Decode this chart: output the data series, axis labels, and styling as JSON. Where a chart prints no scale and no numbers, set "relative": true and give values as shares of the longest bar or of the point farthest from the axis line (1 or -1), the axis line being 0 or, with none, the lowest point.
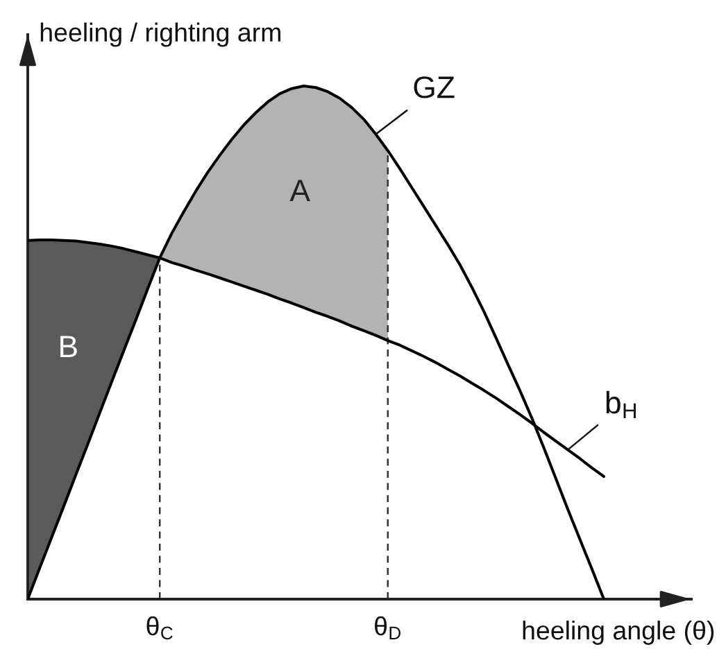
{
  "chart_data": {
    "type": "line",
    "relative": true,
    "tick_labels": "x",
    "xlabel": "heeling angle (θ)",
    "ylabel": "heeling / righting arm",
    "categories": [
      null,
      null,
      null,
      null,
      null,
      null,
      null,
      null,
      null,
      null,
      null,
      "θ$_{C}$",
      null,
      null,
      null,
      null,
      null,
      null,
      null,
      null,
      null,
      null,
      null,
      null,
      null,
      null,
      null,
      null,
      null,
      null,
      "θ$_{D}$",
      null,
      null,
      null,
      null,
      null,
      null,
      null,
      null,
      null,
      null,
      null,
      null,
      null,
      null,
      null,
      null,
      null,
      null
    ],
    "series": [
      {
        "name": "B",
        "type": "area",
        "color": "#5a5a5a",
        "values": [
          0.699,
          0.7,
          0.7,
          0.699,
          0.698,
          0.695,
          0.692,
          0.688,
          0.683,
          0.677,
          0.671,
          0.665,
          null,
          null,
          null,
          null,
          null,
          null,
          null,
          null,
          null,
          null,
          null,
          null,
          null,
          null,
          null,
          null,
          null,
          null,
          null,
          null,
          null,
          null,
          null,
          null,
          null,
          null,
          null,
          null,
          null,
          null,
          null,
          null,
          null,
          null,
          null,
          null,
          null
        ]
      },
      {
        "name": "A",
        "type": "area",
        "color": "#b3b3b3",
        "values": [
          null,
          null,
          null,
          null,
          null,
          null,
          null,
          null,
          null,
          null,
          null,
          0.665,
          0.713,
          0.755,
          0.795,
          0.832,
          0.865,
          0.896,
          0.924,
          0.948,
          0.969,
          0.985,
          0.995,
          1,
          0.997,
          0.989,
          0.976,
          0.958,
          0.935,
          0.906,
          0.874,
          null,
          null,
          null,
          null,
          null,
          null,
          null,
          null,
          null,
          null,
          null,
          null,
          null,
          null,
          null,
          null,
          null,
          null
        ]
      },
      {
        "name": "GZ",
        "color": "#000000",
        "values": [
          0,
          0.061,
          0.121,
          0.181,
          0.242,
          0.302,
          0.363,
          0.424,
          0.484,
          0.544,
          0.605,
          0.665,
          0.713,
          0.755,
          0.795,
          0.832,
          0.865,
          0.896,
          0.924,
          0.948,
          0.969,
          0.985,
          0.995,
          1,
          0.997,
          0.989,
          0.976,
          0.958,
          0.935,
          0.906,
          0.874,
          0.839,
          0.802,
          0.765,
          0.728,
          0.691,
          0.652,
          0.608,
          0.561,
          0.51,
          0.458,
          0.407,
          0.353,
          0.295,
          0.235,
          0.175,
          0.117,
          0.059,
          0
        ]
      },
      {
        "name": "b$_{H}$",
        "color": "#000000",
        "values": [
          0.699,
          0.7,
          0.7,
          0.699,
          0.698,
          0.695,
          0.692,
          0.688,
          0.683,
          0.677,
          0.671,
          0.665,
          0.656,
          0.649,
          0.641,
          0.634,
          0.626,
          0.618,
          0.61,
          0.602,
          0.594,
          0.585,
          0.577,
          0.568,
          0.559,
          0.551,
          0.542,
          0.532,
          0.523,
          0.514,
          0.504,
          0.495,
          0.484,
          0.473,
          0.461,
          0.448,
          0.435,
          0.421,
          0.407,
          0.392,
          0.376,
          0.36,
          0.343,
          0.325,
          0.308,
          0.291,
          0.274,
          0.256,
          0.239
        ]
      }
    ],
    "ref_lines": [
      {
        "axis": "x",
        "value": "θ$_{C}$",
        "line_style": "dashed",
        "color": "#333333"
      },
      {
        "axis": "x",
        "value": "θ$_{D}$",
        "line_style": "dashed",
        "color": "#333333"
      }
    ]
  }
}
